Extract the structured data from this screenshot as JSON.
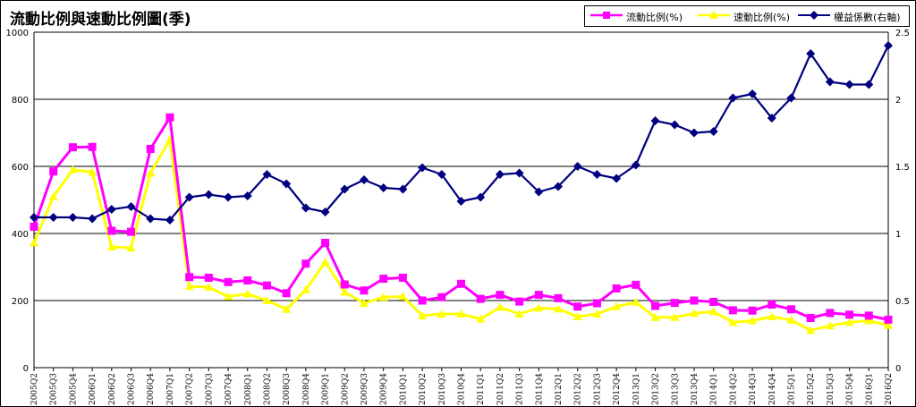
{
  "chart_data": {
    "type": "line",
    "title": "流動比例與速動比例圖(季)",
    "categories": [
      "2005Q2",
      "2005Q3",
      "2005Q4",
      "2006Q1",
      "2006Q2",
      "2006Q3",
      "2006Q4",
      "2007Q1",
      "2007Q2",
      "2007Q3",
      "2007Q4",
      "2008Q1",
      "2008Q2",
      "2008Q3",
      "2008Q4",
      "2009Q1",
      "2009Q2",
      "2009Q3",
      "2009Q4",
      "2010Q1",
      "2010Q2",
      "2010Q3",
      "2010Q4",
      "2011Q1",
      "2011Q2",
      "2011Q3",
      "2011Q4",
      "2012Q1",
      "2012Q2",
      "2012Q3",
      "2012Q4",
      "2013Q1",
      "2013Q2",
      "2013Q3",
      "2013Q4",
      "2014Q1",
      "2014Q2",
      "2014Q3",
      "2014Q4",
      "2015Q1",
      "2015Q2",
      "2015Q3",
      "2015Q4",
      "2016Q1",
      "2016Q2"
    ],
    "series": [
      {
        "name": "流動比例(%)",
        "axis": "left",
        "color": "#ff00ff",
        "marker": "square",
        "values": [
          420,
          585,
          657,
          658,
          408,
          405,
          652,
          746,
          270,
          268,
          255,
          260,
          245,
          222,
          310,
          372,
          248,
          230,
          265,
          268,
          200,
          210,
          250,
          205,
          217,
          197,
          217,
          207,
          182,
          192,
          236,
          247,
          184,
          193,
          200,
          196,
          171,
          170,
          188,
          174,
          148,
          163,
          158,
          155,
          143
        ]
      },
      {
        "name": "速動比例(%)",
        "axis": "left",
        "color": "#ffff00",
        "marker": "triangle",
        "values": [
          372,
          510,
          590,
          583,
          360,
          357,
          580,
          680,
          242,
          240,
          212,
          220,
          200,
          174,
          232,
          315,
          225,
          192,
          210,
          212,
          155,
          160,
          160,
          145,
          180,
          160,
          178,
          175,
          152,
          160,
          182,
          195,
          150,
          150,
          162,
          167,
          135,
          140,
          152,
          142,
          111,
          125,
          135,
          140,
          126
        ]
      },
      {
        "name": "權益係數(右軸)",
        "axis": "right",
        "color": "#000080",
        "marker": "diamond",
        "values": [
          1.12,
          1.12,
          1.12,
          1.11,
          1.18,
          1.2,
          1.11,
          1.1,
          1.27,
          1.29,
          1.27,
          1.28,
          1.44,
          1.37,
          1.19,
          1.16,
          1.33,
          1.4,
          1.34,
          1.33,
          1.49,
          1.44,
          1.24,
          1.27,
          1.44,
          1.45,
          1.31,
          1.35,
          1.5,
          1.44,
          1.41,
          1.51,
          1.84,
          1.81,
          1.75,
          1.76,
          2.01,
          2.04,
          1.86,
          2.01,
          2.34,
          2.13,
          2.11,
          2.11,
          2.4
        ]
      }
    ],
    "y_left": {
      "min": 0,
      "max": 1000,
      "ticks": [
        0,
        200,
        400,
        600,
        800,
        1000
      ]
    },
    "y_right": {
      "min": 0,
      "max": 2.5,
      "ticks": [
        "0",
        "0.5",
        "1",
        "1.5",
        "2",
        "2.5"
      ]
    },
    "grid": true,
    "legend_position": "top-right"
  }
}
